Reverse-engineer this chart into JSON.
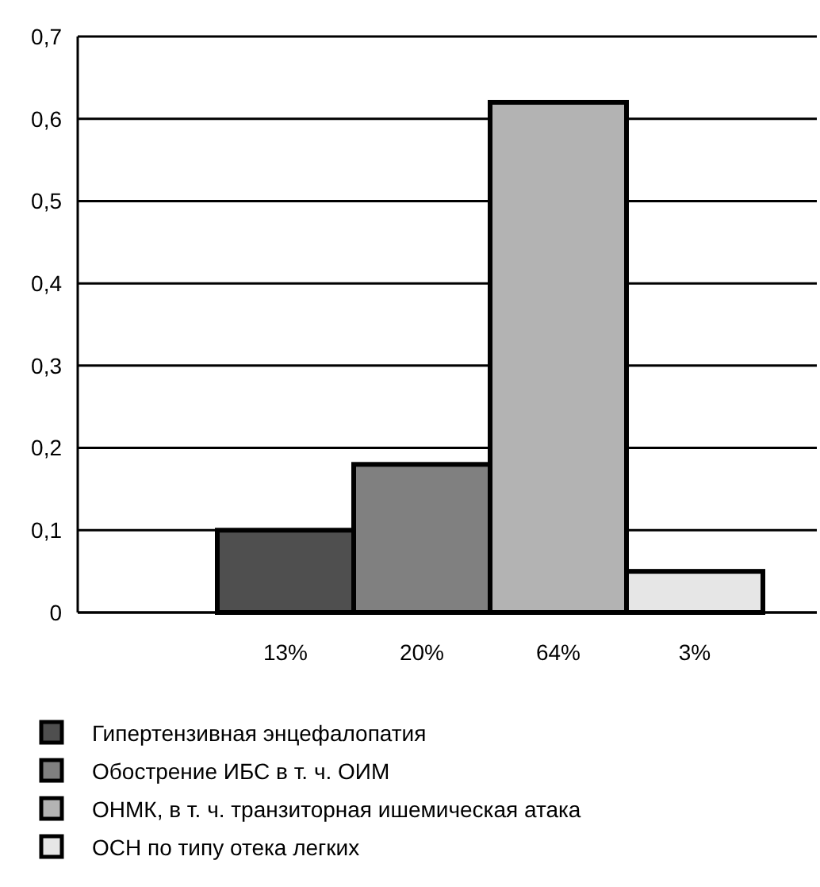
{
  "chart_data": {
    "type": "bar",
    "categories": [
      null,
      "13%",
      "20%",
      "64%",
      "3%"
    ],
    "series": [
      {
        "name": "Гипертензивная энцефалопатия",
        "color": "#4f4f4f",
        "values": [
          null,
          0.1,
          null,
          null,
          null
        ]
      },
      {
        "name": "Обострение ИБС в т. ч. ОИМ",
        "color": "#808080",
        "values": [
          null,
          null,
          0.18,
          null,
          null
        ]
      },
      {
        "name": "ОНМК, в т. ч. транзиторная ишемическая атака",
        "color": "#b3b3b3",
        "values": [
          null,
          null,
          null,
          0.62,
          null
        ]
      },
      {
        "name": "ОСН по типу отека легких",
        "color": "#e6e6e6",
        "values": [
          null,
          null,
          null,
          null,
          0.05
        ]
      }
    ],
    "ylim": [
      0,
      0.7
    ],
    "yticks": [
      {
        "value": 0,
        "label": "0"
      },
      {
        "value": 0.1,
        "label": "0,1"
      },
      {
        "value": 0.2,
        "label": "0,2"
      },
      {
        "value": 0.3,
        "label": "0,3"
      },
      {
        "value": 0.4,
        "label": "0,4"
      },
      {
        "value": 0.5,
        "label": "0,5"
      },
      {
        "value": 0.6,
        "label": "0,6"
      },
      {
        "value": 0.7,
        "label": "0,7"
      }
    ],
    "grid": "y",
    "legend": "bottom"
  }
}
